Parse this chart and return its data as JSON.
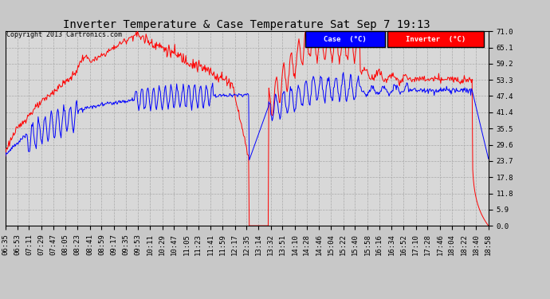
{
  "title": "Inverter Temperature & Case Temperature Sat Sep 7 19:13",
  "copyright": "Copyright 2013 Cartronics.com",
  "legend_case_label": "Case  (°C)",
  "legend_inverter_label": "Inverter  (°C)",
  "case_color": "#0000ff",
  "inverter_color": "#ff0000",
  "ylim": [
    0.0,
    71.0
  ],
  "yticks": [
    0.0,
    5.9,
    11.8,
    17.8,
    23.7,
    29.6,
    35.5,
    41.4,
    47.4,
    53.3,
    59.2,
    65.1,
    71.0
  ],
  "bg_color": "#c8c8c8",
  "plot_bg_color": "#d8d8d8",
  "grid_color": "#aaaaaa",
  "title_fontsize": 10,
  "tick_fontsize": 6.5
}
